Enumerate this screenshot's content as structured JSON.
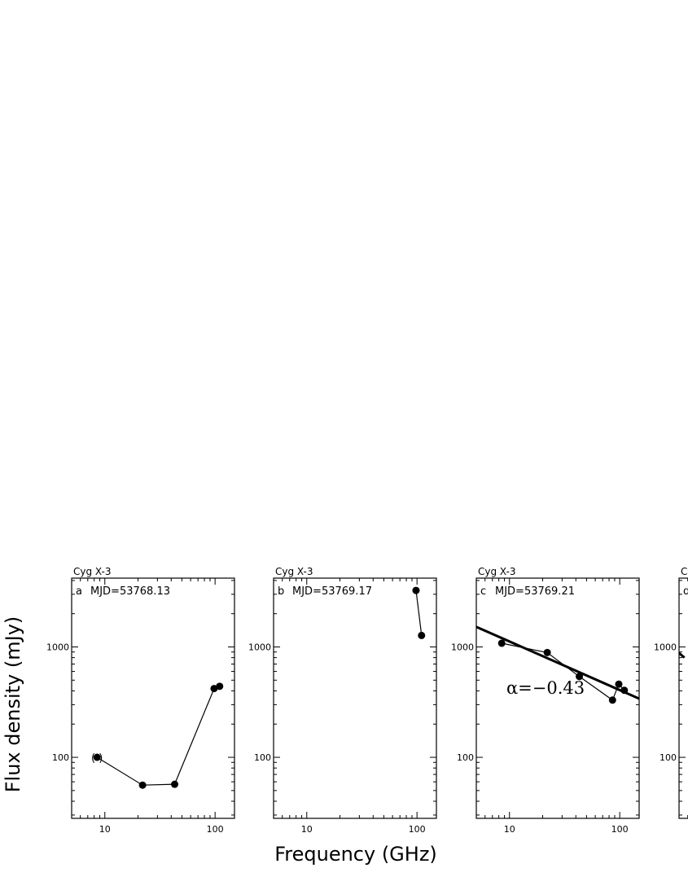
{
  "chart_data": {
    "type": "scatter",
    "xlabel": "Frequency (GHz)",
    "ylabel": "Flux density (mJy)",
    "xscale": "log",
    "yscale": "log",
    "xlim": [
      5,
      150
    ],
    "ylim": [
      28,
      4200
    ],
    "x_ticklabels": [
      "10",
      "100"
    ],
    "y_ticklabels": [
      "100",
      "1000"
    ],
    "panels": [
      {
        "title": "Cyg X-3",
        "label": "a",
        "mjd": "MJD=53768.13",
        "x": [
          8.5,
          22,
          43,
          98,
          110
        ],
        "y": [
          100,
          56,
          57,
          420,
          440
        ],
        "upper_limit_marker": {
          "x": 8.5,
          "y": 100,
          "text": "( )"
        }
      },
      {
        "title": "Cyg X-3",
        "label": "b",
        "mjd": "MJD=53769.17",
        "x": [
          98,
          110
        ],
        "y": [
          3250,
          1270
        ]
      },
      {
        "title": "Cyg X-3",
        "label": "c",
        "mjd": "MJD=53769.21",
        "x": [
          8.5,
          22,
          43,
          86,
          98,
          110
        ],
        "y": [
          1080,
          890,
          540,
          330,
          460,
          405
        ],
        "fit": {
          "x": [
            5,
            150
          ],
          "y": [
            1520,
            340
          ]
        },
        "annotation": "α=−0.43"
      },
      {
        "title": "C",
        "label": "d",
        "mjd": "",
        "x": [],
        "y": [],
        "fit": {
          "x": [
            5,
            5.6
          ],
          "y": [
            880,
            800
          ]
        }
      }
    ]
  }
}
